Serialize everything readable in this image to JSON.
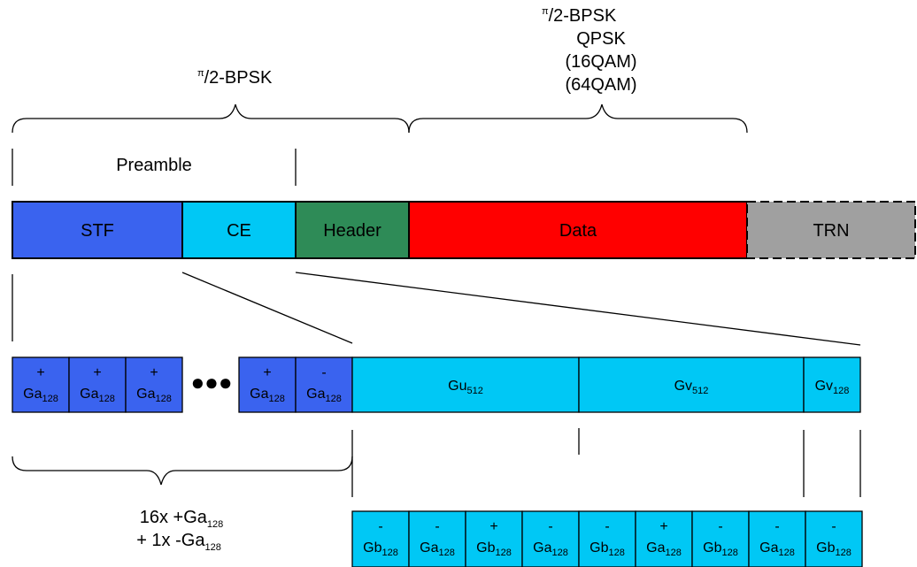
{
  "top_labels": {
    "preamble_header_modulation": {
      "pi": "π",
      "text": "/2-BPSK"
    },
    "data_modulations": {
      "line1": {
        "pi": "π",
        "text": "/2-BPSK"
      },
      "line2": "QPSK",
      "line3": "(16QAM)",
      "line4": "(64QAM)"
    },
    "preamble": "Preamble"
  },
  "frame": {
    "stf": {
      "label": "STF",
      "color": "#3a63ef"
    },
    "ce": {
      "label": "CE",
      "color": "#00c8f5"
    },
    "header": {
      "label": "Header",
      "color": "#2e8b57"
    },
    "data": {
      "label": "Data",
      "color": "#ff0000"
    },
    "trn": {
      "label": "TRN",
      "color": "#a0a0a0"
    }
  },
  "stf_expansion": {
    "cells": [
      {
        "sign": "+",
        "base": "Ga",
        "sub": "128"
      },
      {
        "sign": "+",
        "base": "Ga",
        "sub": "128"
      },
      {
        "sign": "+",
        "base": "Ga",
        "sub": "128"
      },
      {
        "sign": "+",
        "base": "Ga",
        "sub": "128"
      },
      {
        "sign": "-",
        "base": "Ga",
        "sub": "128"
      }
    ],
    "ellipsis": "●●●",
    "summary_line1": {
      "text": "16x +Ga",
      "sub": "128"
    },
    "summary_line2": {
      "text": "+ 1x -Ga",
      "sub": "128"
    }
  },
  "ce_expansion": {
    "blocks": [
      {
        "base": "Gu",
        "sub": "512"
      },
      {
        "base": "Gv",
        "sub": "512"
      },
      {
        "base": "Gv",
        "sub": "128"
      }
    ],
    "sequence": [
      {
        "sign": "-",
        "base": "Gb",
        "sub": "128"
      },
      {
        "sign": "-",
        "base": "Ga",
        "sub": "128"
      },
      {
        "sign": "+",
        "base": "Gb",
        "sub": "128"
      },
      {
        "sign": "-",
        "base": "Ga",
        "sub": "128"
      },
      {
        "sign": "-",
        "base": "Gb",
        "sub": "128"
      },
      {
        "sign": "+",
        "base": "Ga",
        "sub": "128"
      },
      {
        "sign": "-",
        "base": "Gb",
        "sub": "128"
      },
      {
        "sign": "-",
        "base": "Ga",
        "sub": "128"
      },
      {
        "sign": "-",
        "base": "Gb",
        "sub": "128"
      }
    ]
  }
}
